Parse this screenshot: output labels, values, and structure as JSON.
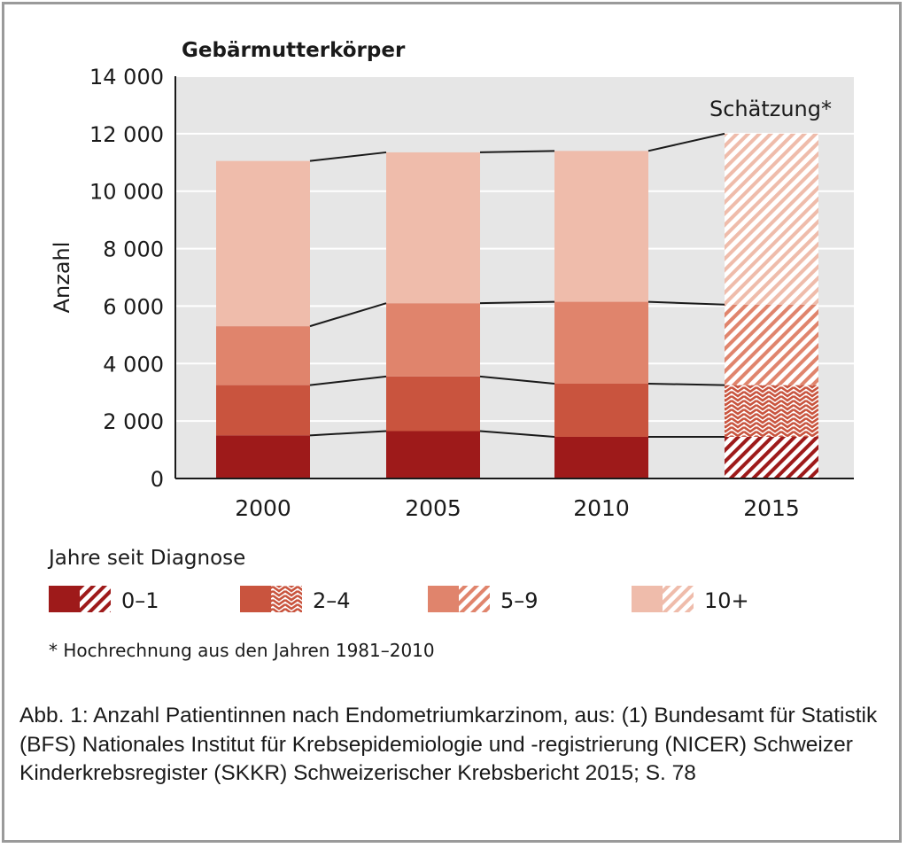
{
  "chart_data": {
    "type": "bar",
    "stacked": true,
    "title": "Gebärmutterkörper",
    "ylabel": "Anzahl",
    "xlabel": "",
    "ylim": [
      0,
      14000
    ],
    "yticks": [
      0,
      2000,
      4000,
      6000,
      8000,
      10000,
      12000,
      14000
    ],
    "ytick_labels": [
      "0",
      "2 000",
      "4 000",
      "6 000",
      "8 000",
      "10 000",
      "12 000",
      "14 000"
    ],
    "grid": true,
    "categories": [
      "2000",
      "2005",
      "2010",
      "2015"
    ],
    "estimated_categories": [
      "2015"
    ],
    "estimate_label": "Schätzung*",
    "series": [
      {
        "name": "0–1",
        "values": [
          1500,
          1650,
          1450,
          1450
        ],
        "color": "#9e1a1a"
      },
      {
        "name": "2–4",
        "values": [
          1750,
          1900,
          1850,
          1800
        ],
        "color": "#c9543e"
      },
      {
        "name": "5–9",
        "values": [
          2050,
          2550,
          2850,
          2800
        ],
        "color": "#e0846c"
      },
      {
        "name": "10+",
        "values": [
          5750,
          5250,
          5250,
          5950
        ],
        "color": "#efbcab"
      }
    ],
    "legend_title": "Jahre seit Diagnose",
    "legend_position": "bottom",
    "footnote": "* Hochrechnung aus den Jahren 1981–2010"
  },
  "caption": "Abb. 1: Anzahl Patientinnen nach Endometriumkarzinom, aus: (1) Bundesamt für Statistik (BFS) Nationales Institut für Krebsepidemiologie und -registrierung (NICER) Schweizer Kinderkrebsregister (SKKR) Schweizerischer Krebsbericht 2015; S. 78",
  "colors": {
    "plot_background": "#e6e6e6",
    "gridline": "#ffffff",
    "frame": "#9a9a9a"
  }
}
